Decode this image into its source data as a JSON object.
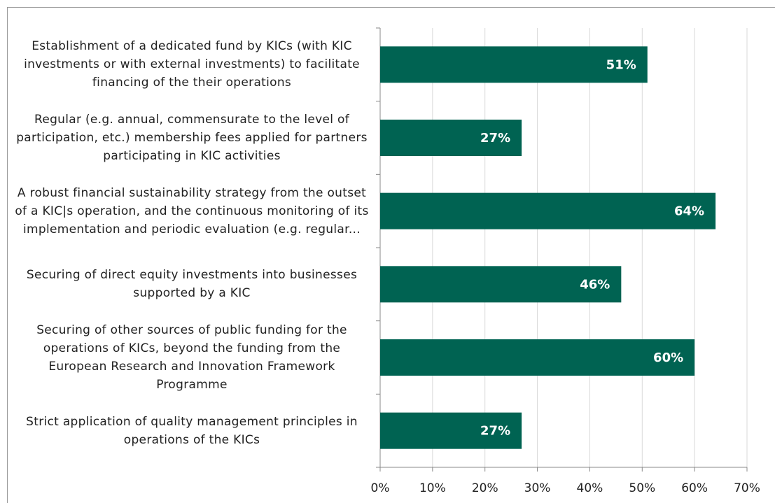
{
  "chart_data": {
    "type": "bar",
    "orientation": "horizontal",
    "categories": [
      "Establishment of a dedicated fund by KICs (with KIC investments or with external investments) to facilitate financing of the their operations",
      "Regular (e.g. annual, commensurate to the level of participation, etc.) membership fees applied for partners participating in KIC activities",
      "A robust financial sustainability strategy from the outset of a KIC|s operation, and the continuous monitoring of its implementation and periodic evaluation (e.g. regular...",
      "Securing of direct equity investments into businesses supported by a KIC",
      "Securing of other sources of public funding for the operations of KICs, beyond the funding from the European Research and Innovation Framework Programme",
      "Strict application of quality management principles in operations of the KICs"
    ],
    "values": [
      51,
      27,
      64,
      46,
      60,
      27
    ],
    "value_labels": [
      "51%",
      "27%",
      "64%",
      "46%",
      "60%",
      "27%"
    ],
    "color": "#006352",
    "xlim": [
      0,
      70
    ],
    "xticks": [
      {
        "value": 0,
        "label": "0%"
      },
      {
        "value": 10,
        "label": "10%"
      },
      {
        "value": 20,
        "label": "20%"
      },
      {
        "value": 30,
        "label": "30%"
      },
      {
        "value": 40,
        "label": "40%"
      },
      {
        "value": 50,
        "label": "50%"
      },
      {
        "value": 60,
        "label": "60%"
      },
      {
        "value": 70,
        "label": "70%"
      }
    ],
    "grid": true
  }
}
